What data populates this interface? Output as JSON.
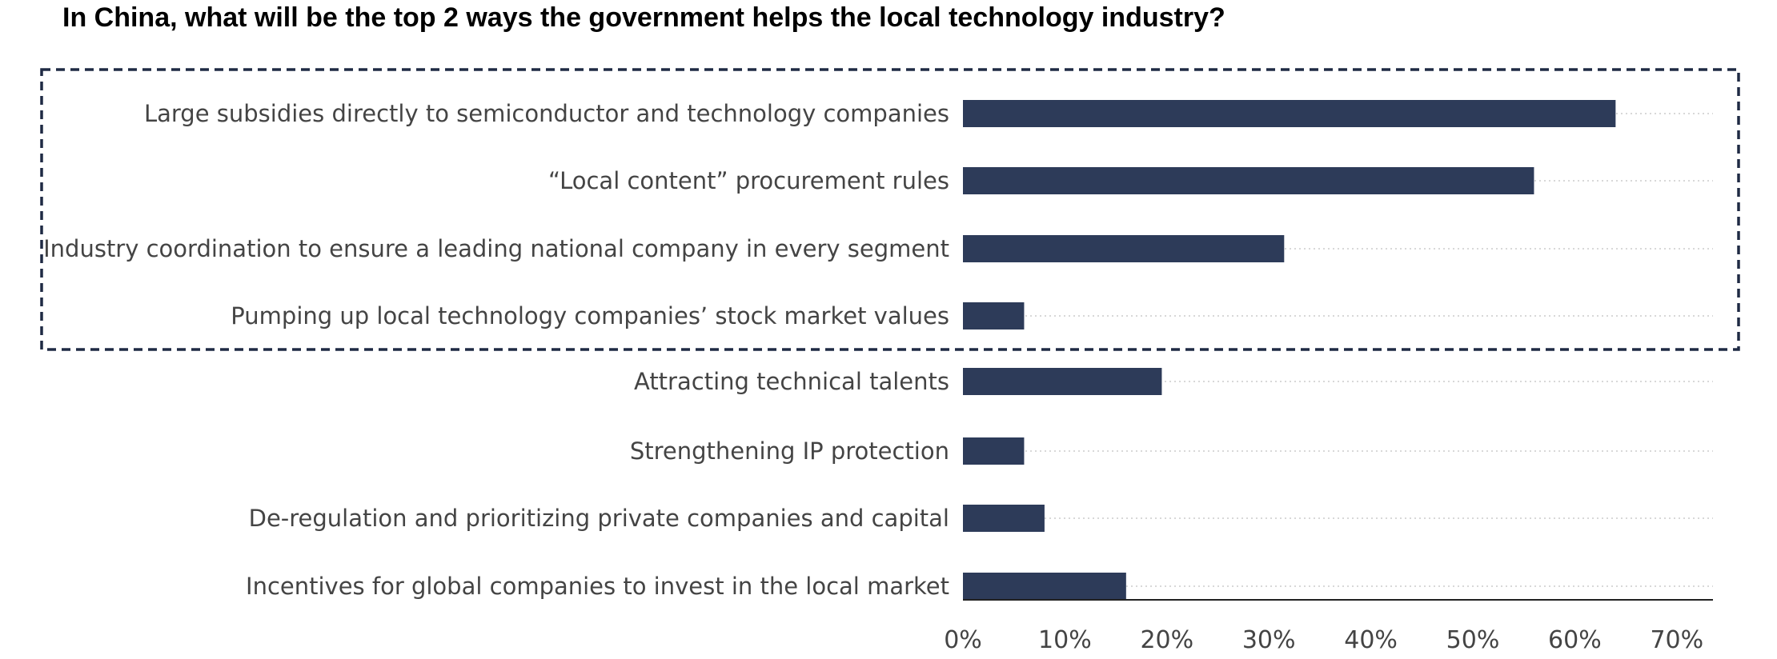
{
  "title": "In China, what will be the top 2 ways the government helps the local technology industry?",
  "chart_data": {
    "type": "bar",
    "orientation": "horizontal",
    "title": "In China, what will be the top 2 ways the government helps the local technology industry?",
    "xlabel": "",
    "ylabel": "",
    "categories": [
      "Large subsidies directly to semiconductor and technology companies",
      "“Local content” procurement rules",
      "Industry coordination to ensure a leading national company in every segment",
      "Pumping up local technology companies’ stock market values",
      "Attracting technical talents",
      "Strengthening IP protection",
      "De-regulation and prioritizing private companies and capital",
      "Incentives for global companies to invest in the local market"
    ],
    "values": [
      64,
      56,
      31.5,
      6,
      19.5,
      6,
      8,
      16
    ],
    "unit": "%",
    "xlim": [
      0,
      74
    ],
    "ticks": [
      0,
      10,
      20,
      30,
      40,
      50,
      60,
      70
    ],
    "tick_labels": [
      "0%",
      "10%",
      "20%",
      "30%",
      "40%",
      "50%",
      "60%",
      "70%"
    ],
    "highlight": {
      "style": "dashed-box",
      "categories_index_range": [
        0,
        3
      ]
    },
    "gridlines": "dotted-per-bar",
    "bar_color": "#2d3b59",
    "highlight_border_color": "#1f2a44",
    "grid_color": "#cccccc",
    "label_color": "#444444",
    "title_color": "#000000"
  }
}
